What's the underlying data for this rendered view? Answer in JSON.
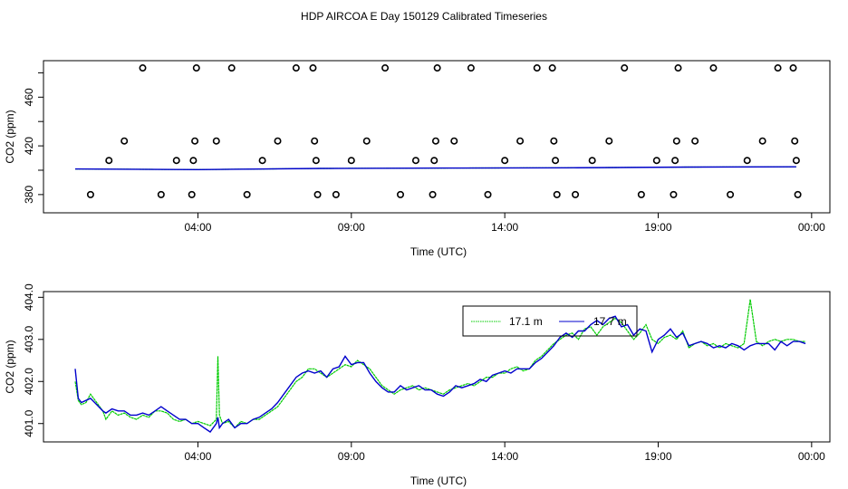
{
  "title": "HDP AIRCOA E  Day 150129  Calibrated Timeseries",
  "colors": {
    "s1": "#00cc00",
    "s2": "#0000cc",
    "axis": "#000000",
    "flag": "#000000"
  },
  "chart_data": [
    {
      "type": "scatter",
      "name": "flags_panel",
      "xlabel": "Time (UTC)",
      "ylabel": "CO2 (ppm)",
      "xlim": [
        0,
        24.3
      ],
      "ylim": [
        368,
        487
      ],
      "x_ticks": [
        4,
        9,
        14,
        19,
        24
      ],
      "x_tick_labels": [
        "04:00",
        "09:00",
        "14:00",
        "19:00",
        "00:00"
      ],
      "y_ticks": [
        380,
        420,
        460
      ],
      "y_tick_labels": [
        "380",
        "420",
        "460"
      ],
      "flag_points": [
        {
          "x": 0.5,
          "y": 380
        },
        {
          "x": 1.1,
          "y": 408
        },
        {
          "x": 1.6,
          "y": 424
        },
        {
          "x": 2.2,
          "y": 484
        },
        {
          "x": 2.8,
          "y": 380
        },
        {
          "x": 3.3,
          "y": 408
        },
        {
          "x": 3.8,
          "y": 380
        },
        {
          "x": 3.85,
          "y": 408
        },
        {
          "x": 3.9,
          "y": 424
        },
        {
          "x": 3.95,
          "y": 484
        },
        {
          "x": 4.6,
          "y": 424
        },
        {
          "x": 5.1,
          "y": 484
        },
        {
          "x": 5.6,
          "y": 380
        },
        {
          "x": 6.1,
          "y": 408
        },
        {
          "x": 6.6,
          "y": 424
        },
        {
          "x": 7.2,
          "y": 484
        },
        {
          "x": 7.75,
          "y": 484
        },
        {
          "x": 7.8,
          "y": 424
        },
        {
          "x": 7.85,
          "y": 408
        },
        {
          "x": 7.9,
          "y": 380
        },
        {
          "x": 8.5,
          "y": 380
        },
        {
          "x": 9.0,
          "y": 408
        },
        {
          "x": 9.5,
          "y": 424
        },
        {
          "x": 10.1,
          "y": 484
        },
        {
          "x": 10.6,
          "y": 380
        },
        {
          "x": 11.1,
          "y": 408
        },
        {
          "x": 11.65,
          "y": 380
        },
        {
          "x": 11.7,
          "y": 408
        },
        {
          "x": 11.75,
          "y": 424
        },
        {
          "x": 11.8,
          "y": 484
        },
        {
          "x": 12.35,
          "y": 424
        },
        {
          "x": 12.9,
          "y": 484
        },
        {
          "x": 13.45,
          "y": 380
        },
        {
          "x": 14.0,
          "y": 408
        },
        {
          "x": 14.5,
          "y": 424
        },
        {
          "x": 15.05,
          "y": 484
        },
        {
          "x": 15.55,
          "y": 484
        },
        {
          "x": 15.6,
          "y": 424
        },
        {
          "x": 15.65,
          "y": 408
        },
        {
          "x": 15.7,
          "y": 380
        },
        {
          "x": 16.3,
          "y": 380
        },
        {
          "x": 16.85,
          "y": 408
        },
        {
          "x": 17.4,
          "y": 424
        },
        {
          "x": 17.9,
          "y": 484
        },
        {
          "x": 18.45,
          "y": 380
        },
        {
          "x": 18.95,
          "y": 408
        },
        {
          "x": 19.5,
          "y": 380
        },
        {
          "x": 19.55,
          "y": 408
        },
        {
          "x": 19.6,
          "y": 424
        },
        {
          "x": 19.65,
          "y": 484
        },
        {
          "x": 20.2,
          "y": 424
        },
        {
          "x": 20.8,
          "y": 484
        },
        {
          "x": 21.35,
          "y": 380
        },
        {
          "x": 21.9,
          "y": 408
        },
        {
          "x": 22.4,
          "y": 424
        },
        {
          "x": 22.9,
          "y": 484
        },
        {
          "x": 23.4,
          "y": 484
        },
        {
          "x": 23.45,
          "y": 424
        },
        {
          "x": 23.5,
          "y": 408
        },
        {
          "x": 23.55,
          "y": 380
        }
      ],
      "series": [
        {
          "name": "17.1 m",
          "color": "#00cc00",
          "x": [
            0,
            4,
            8,
            12,
            16,
            20,
            23.5
          ],
          "values": [
            401,
            400.5,
            401.5,
            401.8,
            402,
            402.6,
            402.8
          ]
        },
        {
          "name": "17.7 m",
          "color": "#0000cc",
          "x": [
            0,
            4,
            8,
            12,
            16,
            20,
            23.5
          ],
          "values": [
            401,
            400.5,
            401.5,
            401.8,
            402,
            402.6,
            402.8
          ]
        }
      ]
    },
    {
      "type": "line",
      "name": "co2_panel",
      "xlabel": "Time (UTC)",
      "ylabel": "CO2 (ppm)",
      "xlim": [
        0,
        24.3
      ],
      "ylim": [
        400.65,
        404.05
      ],
      "x_ticks": [
        4,
        9,
        14,
        19,
        24
      ],
      "x_tick_labels": [
        "04:00",
        "09:00",
        "14:00",
        "19:00",
        "00:00"
      ],
      "y_ticks": [
        401,
        402,
        403,
        404
      ],
      "y_tick_labels": [
        "401.0",
        "402.0",
        "403.0",
        "404.0"
      ],
      "legend": {
        "placement": "top-right",
        "entries": [
          "17.1 m",
          "17.7 m"
        ]
      },
      "series": [
        {
          "name": "17.1 m",
          "color": "#00cc00",
          "x": [
            0.0,
            0.1,
            0.2,
            0.35,
            0.5,
            0.7,
            0.9,
            1.0,
            1.2,
            1.4,
            1.6,
            1.8,
            2.0,
            2.2,
            2.4,
            2.6,
            2.8,
            3.0,
            3.2,
            3.4,
            3.6,
            3.8,
            4.0,
            4.2,
            4.4,
            4.6,
            4.65,
            4.7,
            4.8,
            5.0,
            5.2,
            5.4,
            5.6,
            5.8,
            6.0,
            6.2,
            6.4,
            6.6,
            6.8,
            7.0,
            7.2,
            7.4,
            7.6,
            7.8,
            8.0,
            8.2,
            8.4,
            8.6,
            8.8,
            9.0,
            9.2,
            9.4,
            9.6,
            9.8,
            10.0,
            10.2,
            10.4,
            10.6,
            10.8,
            11.0,
            11.2,
            11.4,
            11.6,
            11.8,
            12.0,
            12.2,
            12.4,
            12.6,
            12.8,
            13.0,
            13.2,
            13.4,
            13.6,
            13.8,
            14.0,
            14.2,
            14.4,
            14.6,
            14.8,
            15.0,
            15.2,
            15.4,
            15.6,
            15.8,
            16.0,
            16.2,
            16.4,
            16.6,
            16.8,
            17.0,
            17.2,
            17.4,
            17.6,
            17.8,
            18.0,
            18.2,
            18.4,
            18.6,
            18.8,
            19.0,
            19.2,
            19.4,
            19.6,
            19.8,
            20.0,
            20.2,
            20.4,
            20.6,
            20.8,
            21.0,
            21.2,
            21.4,
            21.6,
            21.8,
            22.0,
            22.2,
            22.4,
            22.6,
            22.8,
            23.0,
            23.2,
            23.4,
            23.6,
            23.8
          ],
          "values": [
            402.0,
            401.55,
            401.45,
            401.5,
            401.7,
            401.5,
            401.3,
            401.1,
            401.3,
            401.2,
            401.25,
            401.15,
            401.1,
            401.2,
            401.15,
            401.3,
            401.3,
            401.25,
            401.1,
            401.05,
            401.1,
            401.0,
            401.05,
            401.0,
            400.95,
            401.1,
            402.6,
            401.2,
            401.0,
            401.05,
            400.9,
            401.05,
            401.0,
            401.1,
            401.1,
            401.2,
            401.3,
            401.4,
            401.6,
            401.8,
            402.0,
            402.1,
            402.3,
            402.3,
            402.2,
            402.1,
            402.2,
            402.3,
            402.4,
            402.35,
            402.5,
            402.4,
            402.3,
            402.1,
            401.9,
            401.8,
            401.7,
            401.8,
            401.85,
            401.9,
            401.8,
            401.85,
            401.8,
            401.75,
            401.7,
            401.8,
            401.85,
            401.9,
            401.95,
            401.9,
            402.0,
            402.1,
            402.1,
            402.2,
            402.2,
            402.3,
            402.35,
            402.25,
            402.3,
            402.5,
            402.6,
            402.75,
            402.9,
            403.0,
            403.1,
            403.15,
            403.0,
            403.25,
            403.3,
            403.1,
            403.3,
            403.4,
            403.5,
            403.4,
            403.2,
            403.0,
            403.15,
            403.35,
            403.0,
            402.9,
            403.05,
            403.1,
            403.0,
            403.2,
            402.8,
            402.9,
            402.95,
            402.85,
            402.9,
            402.8,
            402.9,
            402.85,
            402.8,
            402.9,
            403.95,
            402.95,
            402.85,
            402.95,
            403.0,
            402.95,
            403.0,
            403.0,
            402.95,
            402.95
          ]
        },
        {
          "name": "17.7 m",
          "color": "#0000cc",
          "x": [
            0.0,
            0.1,
            0.2,
            0.35,
            0.5,
            0.7,
            0.9,
            1.0,
            1.2,
            1.4,
            1.6,
            1.8,
            2.0,
            2.2,
            2.4,
            2.6,
            2.8,
            3.0,
            3.2,
            3.4,
            3.6,
            3.8,
            4.0,
            4.2,
            4.4,
            4.6,
            4.65,
            4.7,
            4.8,
            5.0,
            5.2,
            5.4,
            5.6,
            5.8,
            6.0,
            6.2,
            6.4,
            6.6,
            6.8,
            7.0,
            7.2,
            7.4,
            7.6,
            7.8,
            8.0,
            8.2,
            8.4,
            8.6,
            8.8,
            9.0,
            9.2,
            9.4,
            9.6,
            9.8,
            10.0,
            10.2,
            10.4,
            10.6,
            10.8,
            11.0,
            11.2,
            11.4,
            11.6,
            11.8,
            12.0,
            12.2,
            12.4,
            12.6,
            12.8,
            13.0,
            13.2,
            13.4,
            13.6,
            13.8,
            14.0,
            14.2,
            14.4,
            14.6,
            14.8,
            15.0,
            15.2,
            15.4,
            15.6,
            15.8,
            16.0,
            16.2,
            16.4,
            16.6,
            16.8,
            17.0,
            17.2,
            17.4,
            17.6,
            17.8,
            18.0,
            18.2,
            18.4,
            18.6,
            18.8,
            19.0,
            19.2,
            19.4,
            19.6,
            19.8,
            20.0,
            20.2,
            20.4,
            20.6,
            20.8,
            21.0,
            21.2,
            21.4,
            21.6,
            21.8,
            22.0,
            22.2,
            22.4,
            22.6,
            22.8,
            23.0,
            23.2,
            23.4,
            23.6,
            23.8
          ],
          "values": [
            402.3,
            401.6,
            401.5,
            401.55,
            401.6,
            401.45,
            401.3,
            401.25,
            401.35,
            401.3,
            401.3,
            401.2,
            401.2,
            401.25,
            401.2,
            401.3,
            401.4,
            401.3,
            401.2,
            401.1,
            401.1,
            401.0,
            401.0,
            400.9,
            400.8,
            401.0,
            401.15,
            400.9,
            401.0,
            401.1,
            400.9,
            401.0,
            401.0,
            401.1,
            401.15,
            401.25,
            401.35,
            401.5,
            401.7,
            401.9,
            402.1,
            402.2,
            402.25,
            402.2,
            402.25,
            402.1,
            402.3,
            402.35,
            402.6,
            402.4,
            402.45,
            402.45,
            402.2,
            402.0,
            401.85,
            401.75,
            401.75,
            401.9,
            401.8,
            401.85,
            401.9,
            401.8,
            401.8,
            401.7,
            401.65,
            401.75,
            401.9,
            401.85,
            401.9,
            401.95,
            402.05,
            402.0,
            402.15,
            402.2,
            402.25,
            402.2,
            402.3,
            402.3,
            402.3,
            402.45,
            402.55,
            402.7,
            402.85,
            403.05,
            403.15,
            403.05,
            403.2,
            403.2,
            403.35,
            403.45,
            403.35,
            403.5,
            403.55,
            403.3,
            403.35,
            403.1,
            403.25,
            403.2,
            402.7,
            403.0,
            403.1,
            403.25,
            403.05,
            403.15,
            402.85,
            402.9,
            402.95,
            402.9,
            402.8,
            402.85,
            402.8,
            402.9,
            402.85,
            402.75,
            402.85,
            402.9,
            402.9,
            402.9,
            402.75,
            402.95,
            402.85,
            402.95,
            402.95,
            402.9
          ]
        }
      ]
    }
  ]
}
